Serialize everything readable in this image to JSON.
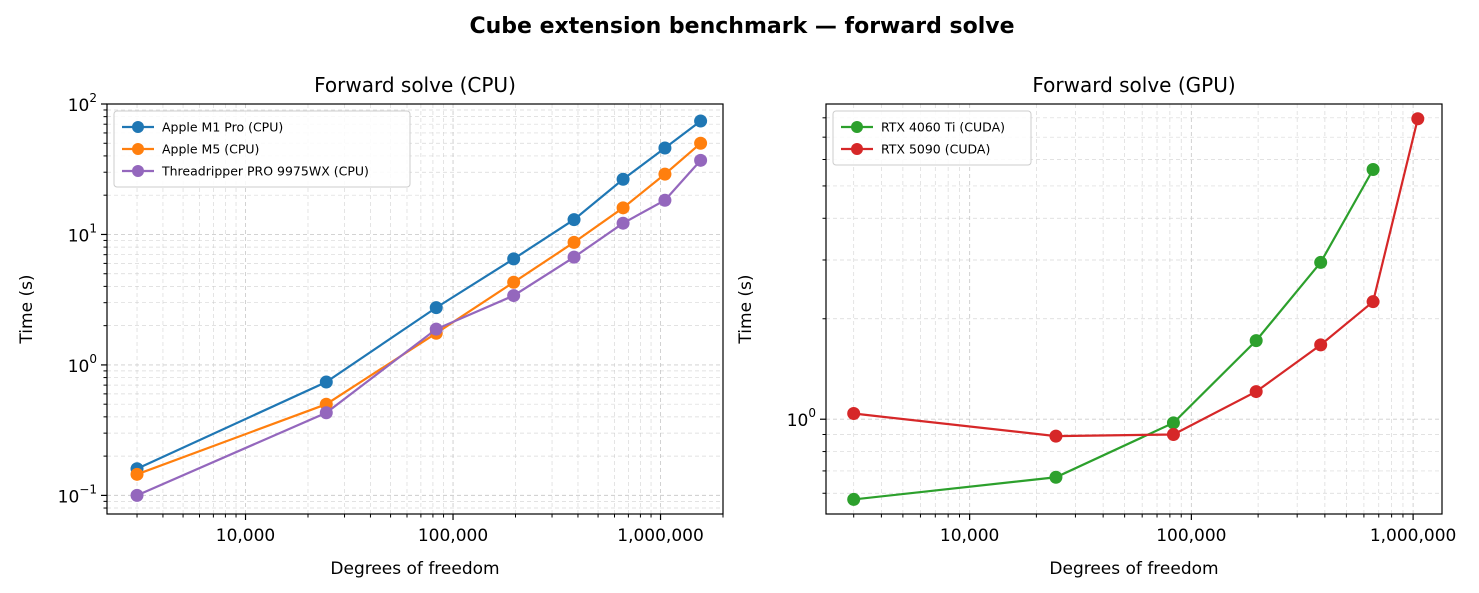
{
  "figure_title": "Cube extension benchmark — forward solve",
  "colors": {
    "Apple M1 Pro (CPU)": "#1f77b4",
    "Apple M5 (CPU)": "#ff7f0e",
    "Threadripper PRO 9975WX (CPU)": "#9467bd",
    "RTX 4060 Ti (CUDA)": "#2ca02c",
    "RTX 5090 (CUDA)": "#d62728"
  },
  "chart_data": [
    {
      "type": "line",
      "title": "Forward solve (CPU)",
      "xlabel": "Degrees of freedom",
      "ylabel": "Time (s)",
      "xscale": "log",
      "yscale": "log",
      "xlim": [
        2150,
        2000000
      ],
      "ylim": [
        0.072,
        100
      ],
      "grid": "on (major and minor, dashed)",
      "legend": "top-left",
      "x_ticks": [
        10000,
        100000,
        1000000
      ],
      "x_tick_labels": [
        "10,000",
        "100,000",
        "1,000,000"
      ],
      "y_ticks": [
        0.1,
        1,
        10,
        100
      ],
      "y_tick_labels": [
        {
          "base": "10",
          "exp": "−1"
        },
        {
          "base": "10",
          "exp": "0"
        },
        {
          "base": "10",
          "exp": "1"
        },
        {
          "base": "10",
          "exp": "2"
        }
      ],
      "series": [
        {
          "name": "Apple M1 Pro (CPU)",
          "x": [
            3000,
            24500,
            83000,
            196000,
            383000,
            660000,
            1050000,
            1560000
          ],
          "y": [
            0.16,
            0.74,
            2.75,
            6.5,
            13.0,
            26.5,
            46.0,
            74.0
          ]
        },
        {
          "name": "Apple M5 (CPU)",
          "x": [
            3000,
            24500,
            83000,
            196000,
            383000,
            660000,
            1050000,
            1560000
          ],
          "y": [
            0.145,
            0.5,
            1.75,
            4.3,
            8.7,
            16.0,
            29.0,
            50.0
          ]
        },
        {
          "name": "Threadripper PRO 9975WX (CPU)",
          "x": [
            3000,
            24500,
            83000,
            196000,
            383000,
            660000,
            1050000,
            1560000
          ],
          "y": [
            0.1,
            0.43,
            1.88,
            3.4,
            6.7,
            12.2,
            18.3,
            37.0
          ]
        }
      ]
    },
    {
      "type": "line",
      "title": "Forward solve (GPU)",
      "xlabel": "Degrees of freedom",
      "ylabel": "Time (s)",
      "xscale": "log",
      "yscale": "log",
      "xlim": [
        2250,
        1350000
      ],
      "ylim": [
        0.52,
        8.8
      ],
      "grid": "on (major and minor, dashed)",
      "legend": "top-left",
      "x_ticks": [
        10000,
        100000,
        1000000
      ],
      "x_tick_labels": [
        "10,000",
        "100,000",
        "1,000,000"
      ],
      "y_ticks": [
        1
      ],
      "y_tick_labels": [
        {
          "base": "10",
          "exp": "0"
        }
      ],
      "series": [
        {
          "name": "RTX 4060 Ti (CUDA)",
          "x": [
            3000,
            24500,
            83000,
            196000,
            383000,
            660000
          ],
          "y": [
            0.575,
            0.67,
            0.975,
            1.72,
            2.95,
            5.6
          ]
        },
        {
          "name": "RTX 5090 (CUDA)",
          "x": [
            3000,
            24500,
            83000,
            196000,
            383000,
            660000,
            1050000
          ],
          "y": [
            1.04,
            0.89,
            0.9,
            1.21,
            1.67,
            2.25,
            7.95
          ]
        }
      ]
    }
  ]
}
